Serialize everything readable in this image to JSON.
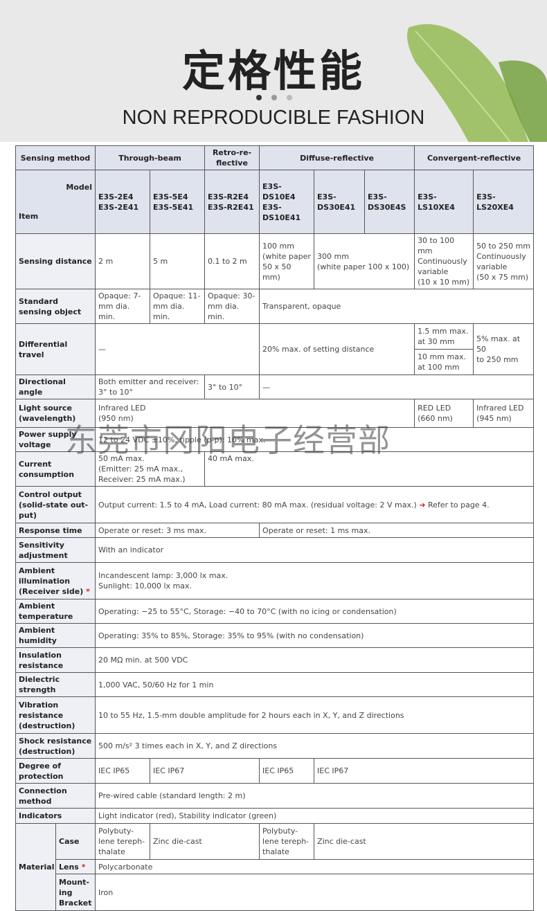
{
  "header": {
    "title": "定格性能",
    "subtitle": "NON REPRODUCIBLE FASHION"
  },
  "watermark": "东莞市冈阳电子经营部",
  "table": {
    "head": {
      "sensing_method": "Sensing method",
      "model": "Model",
      "item": "Item",
      "groups": [
        "Through-beam",
        "Retro-re-\nflective",
        "Diffuse-reflective",
        "Convergent-reflective"
      ],
      "models": [
        "E3S-2E4\nE3S-2E41",
        "E3S-5E4\nE3S-5E41",
        "E3S-R2E4\nE3S-R2E41",
        "E3S-\nDS10E4\nE3S-\nDS10E41",
        "E3S-\nDS30E41",
        "E3S-\nDS30E4S",
        "E3S-\nLS10XE4",
        "E3S-\nLS20XE4"
      ]
    },
    "rows": [
      {
        "label": "Sensing distance",
        "cells": [
          "2 m",
          "5 m",
          "0.1 to 2 m",
          "100 mm\n(white paper\n50 x 50 mm)",
          "300 mm\n(white paper 100 x 100)",
          "30 to 100 mm\nContinuously\nvariable\n(10 x 10 mm)",
          "50 to 250 mm\nContinuously\nvariable\n(50 x 75 mm)"
        ]
      },
      {
        "label": "Standard sensing object",
        "cells": [
          "Opaque: 7-\nmm dia. min.",
          "Opaque: 11-\nmm dia. min.",
          "Opaque: 30-\nmm dia. min.",
          "Transparent, opaque"
        ]
      },
      {
        "label": "Differential travel",
        "cells": [
          "—",
          "20% max. of setting distance",
          "1.5 mm max.\nat 30 mm",
          "10 mm max.\nat 100 mm",
          "5% max. at 50\nto 250 mm"
        ]
      },
      {
        "label": "Directional angle",
        "cells": [
          "Both emitter and receiver:\n3° to 10°",
          "3° to 10°",
          "—"
        ]
      },
      {
        "label": "Light source\n(wavelength)",
        "cells": [
          "Infrared LED\n(950 nm)",
          "RED LED\n(660 nm)",
          "Infrared LED\n(945 nm)"
        ]
      },
      {
        "label": "Power supply\nvoltage",
        "cells": [
          "12 to 24 VDC ±10%, ripple (p-p): 10% max."
        ]
      },
      {
        "label": "Current\nconsumption",
        "cells": [
          "50 mA max.\n(Emitter: 25 mA max.,\nReceiver: 25 mA max.)",
          "40 mA max."
        ]
      },
      {
        "label": "Control output\n(solid-state out-\nput)",
        "cells": [
          "Output current: 1.5 to 4 mA, Load current: 80 mA max. (residual voltage: 2 V max.)"
        ],
        "arrow": "➜",
        "ref": "Refer to page 4."
      },
      {
        "label": "Response time",
        "cells": [
          "Operate or reset: 3 ms max.",
          "Operate or reset: 1 ms max."
        ]
      },
      {
        "label": "Sensitivity\nadjustment",
        "cells": [
          "With an indicator"
        ]
      },
      {
        "label": "Ambient\nillumination\n(Receiver side)",
        "mark": "*",
        "cells": [
          "Incandescent lamp: 3,000 lx max.\nSunlight: 10,000 lx max."
        ]
      },
      {
        "label": "Ambient\ntemperature",
        "cells": [
          "Operating: −25 to 55°C, Storage: −40 to 70°C (with no icing or condensation)"
        ]
      },
      {
        "label": "Ambient humidity",
        "cells": [
          "Operating: 35% to 85%, Storage: 35% to 95% (with no condensation)"
        ]
      },
      {
        "label": "Insulation\nresistance",
        "cells": [
          "20 MΩ min. at 500 VDC"
        ]
      },
      {
        "label": "Dielectric strength",
        "cells": [
          "1,000 VAC, 50/60 Hz for 1 min"
        ]
      },
      {
        "label": "Vibration\nresistance\n(destruction)",
        "cells": [
          "10 to 55 Hz, 1.5-mm double amplitude for 2 hours each in X, Y, and Z directions"
        ]
      },
      {
        "label": "Shock resistance\n(destruction)",
        "cells": [
          "500 m/s² 3 times each in X, Y, and Z directions"
        ]
      },
      {
        "label": "Degree of\nprotection",
        "cells": [
          "IEC IP65",
          "IEC IP67",
          "IEC IP65",
          "IEC IP67"
        ]
      },
      {
        "label": "Connection\nmethod",
        "cells": [
          "Pre-wired cable (standard length: 2 m)"
        ]
      },
      {
        "label": "Indicators",
        "cells": [
          "Light indicator (red), Stability indicator (green)"
        ]
      }
    ],
    "material": {
      "label": "Material",
      "rows": [
        {
          "label": "Case",
          "cells": [
            "Polybuty-\nlene tereph-\nthalate",
            "Zinc die-cast",
            "Polybuty-\nlene tereph-\nthalate",
            "Zinc die-cast"
          ]
        },
        {
          "label": "Lens",
          "mark": "*",
          "cells": [
            "Polycarbonate"
          ]
        },
        {
          "label": "Mount-\ning\nBracket",
          "cells": [
            "Iron"
          ]
        }
      ]
    }
  }
}
